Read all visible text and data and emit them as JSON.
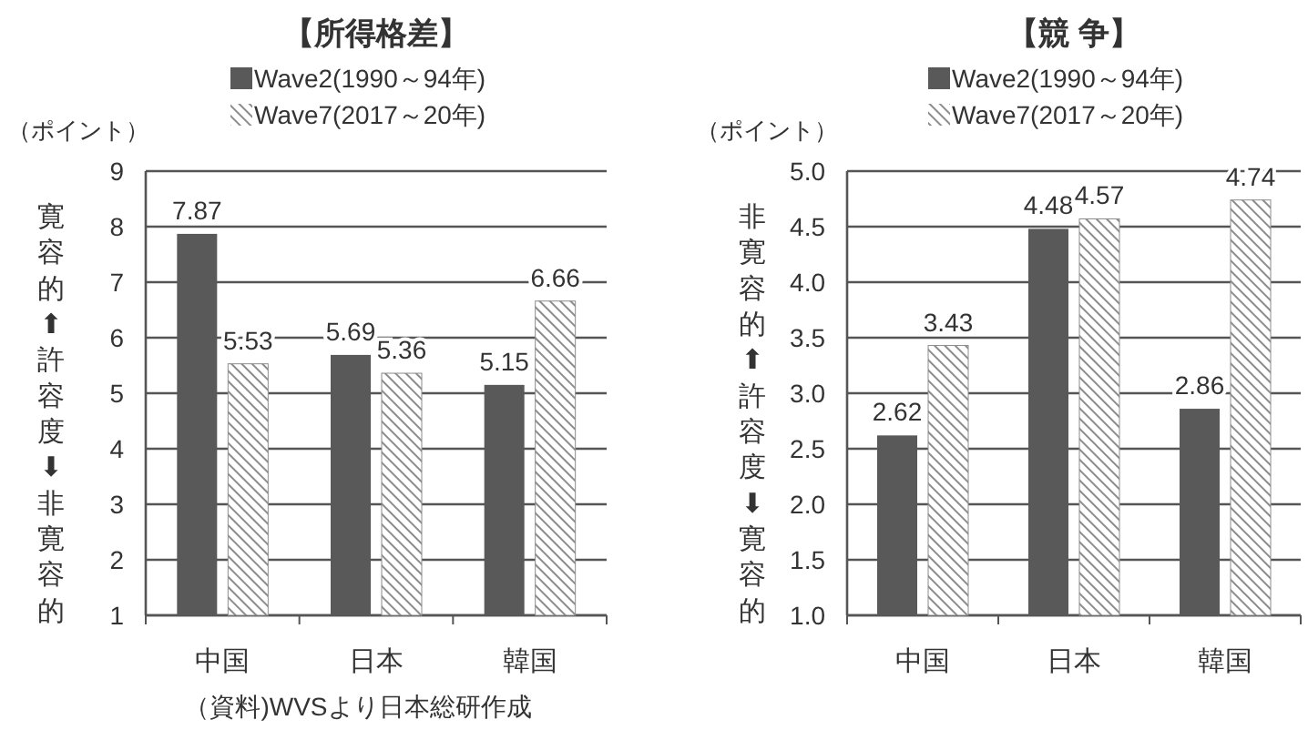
{
  "chart_data": [
    {
      "type": "bar",
      "title": "【所得格差】",
      "ylabel": "（ポイント）",
      "annotations": [
        "寛容的⬆許容度⬇非寛容的",
        "（資料)WVSより日本総研作成"
      ],
      "categories": [
        "中国",
        "日本",
        "韓国"
      ],
      "series": [
        {
          "name": "Wave2(1990～94年)",
          "color": "#595959",
          "values": [
            7.87,
            5.69,
            5.15
          ]
        },
        {
          "name": "Wave7(2017～20年)",
          "color": "#8c8c8c",
          "values": [
            5.53,
            5.36,
            6.66
          ]
        }
      ],
      "ylim": [
        1,
        9
      ],
      "yticks": [
        1,
        2,
        3,
        4,
        5,
        6,
        7,
        8,
        9
      ],
      "grid": "y",
      "legend": "top",
      "data_labels": true
    },
    {
      "type": "bar",
      "title": "【競 争】",
      "ylabel": "（ポイント）",
      "annotations": [
        "非寛容的⬆許容度⬇寛容的"
      ],
      "categories": [
        "中国",
        "日本",
        "韓国"
      ],
      "series": [
        {
          "name": "Wave2(1990～94年)",
          "color": "#595959",
          "values": [
            2.62,
            4.48,
            2.86
          ]
        },
        {
          "name": "Wave7(2017～20年)",
          "color": "#8c8c8c",
          "values": [
            3.43,
            4.57,
            4.74
          ]
        }
      ],
      "ylim": [
        1.0,
        5.0
      ],
      "yticks": [
        {
          "value": 1,
          "label": "1.0"
        },
        {
          "value": 1.5,
          "label": "1.5"
        },
        {
          "value": 2,
          "label": "2.0"
        },
        {
          "value": 2.5,
          "label": "2.5"
        },
        {
          "value": 3,
          "label": "3.0"
        },
        {
          "value": 3.5,
          "label": "3.5"
        },
        {
          "value": 4,
          "label": "4.0"
        },
        {
          "value": 4.5,
          "label": "4.5"
        },
        {
          "value": 5,
          "label": "5.0"
        }
      ],
      "grid": "y",
      "legend": "top",
      "data_labels": true
    }
  ]
}
